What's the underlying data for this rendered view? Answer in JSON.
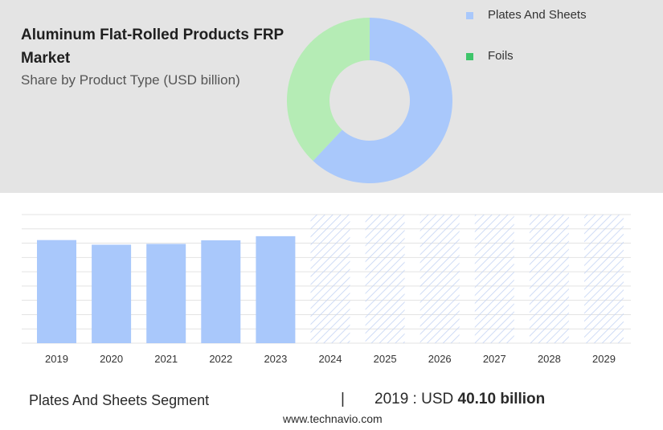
{
  "header": {
    "title": "Aluminum Flat-Rolled Products FRP Market",
    "subtitle": "Share by Product Type (USD billion)"
  },
  "colors": {
    "plates_and_sheets": "#a9c8fb",
    "foils": "#b5ecb5",
    "legend_foils": "#3ec56a",
    "forecast_hatch": "#c4d4f4"
  },
  "chart_data": [
    {
      "type": "pie",
      "variant": "donut",
      "title": "Share by Product Type (USD billion)",
      "legend_position": "top-right",
      "series": [
        {
          "name": "Plates And Sheets",
          "value": 62
        },
        {
          "name": "Foils",
          "value": 38
        }
      ]
    },
    {
      "type": "bar",
      "categories": [
        "2019",
        "2020",
        "2021",
        "2022",
        "2023",
        "2024",
        "2025",
        "2026",
        "2027",
        "2028",
        "2029"
      ],
      "values": [
        40.1,
        38.3,
        38.6,
        40.0,
        41.6,
        null,
        null,
        null,
        null,
        null,
        null
      ],
      "forecast_categories": [
        "2024",
        "2025",
        "2026",
        "2027",
        "2028",
        "2029"
      ],
      "forecast_value": 50,
      "ylim": [
        0,
        50
      ],
      "grid": true,
      "gridline_count": 9
    }
  ],
  "footer": {
    "segment": "Plates And Sheets Segment",
    "separator": "|",
    "value_prefix": "2019 : USD",
    "value_bold": "40.10 billion",
    "source": "www.technavio.com"
  }
}
